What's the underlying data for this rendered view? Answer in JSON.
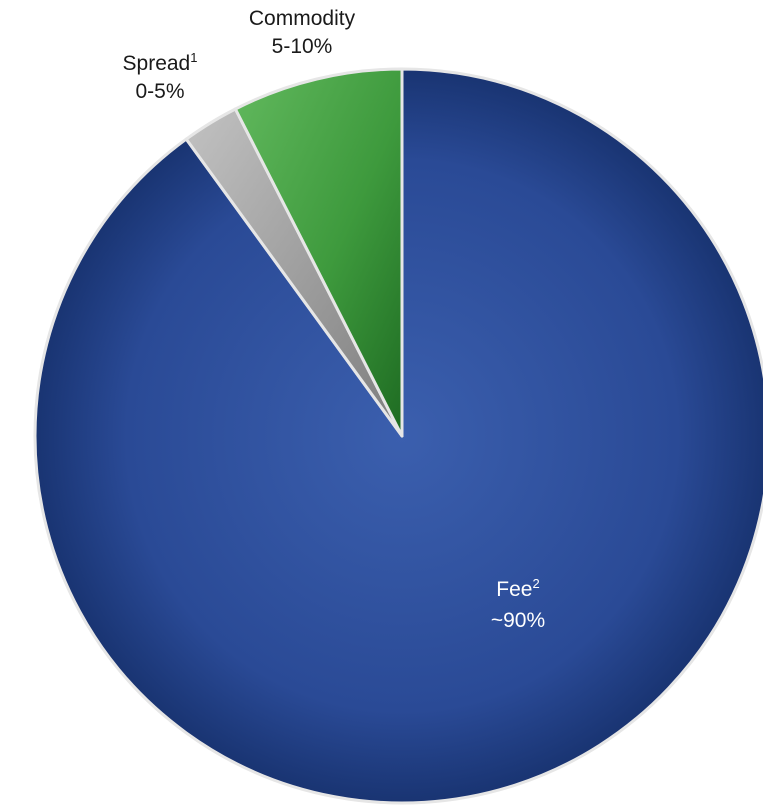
{
  "chart_data": {
    "type": "pie",
    "slices": [
      {
        "name": "Fee",
        "footnote": "2",
        "label": "~90%",
        "value": 90,
        "color": "#2a4d9c"
      },
      {
        "name": "Spread",
        "footnote": "1",
        "label": "0-5%",
        "value": 2.5,
        "color": "#a9a9a9"
      },
      {
        "name": "Commodity",
        "footnote": "",
        "label": "5-10%",
        "value": 7.5,
        "color": "#3f9a3f"
      }
    ],
    "start": "12 o'clock",
    "direction": "clockwise",
    "legend": "none",
    "data_labels": "category name and range"
  }
}
